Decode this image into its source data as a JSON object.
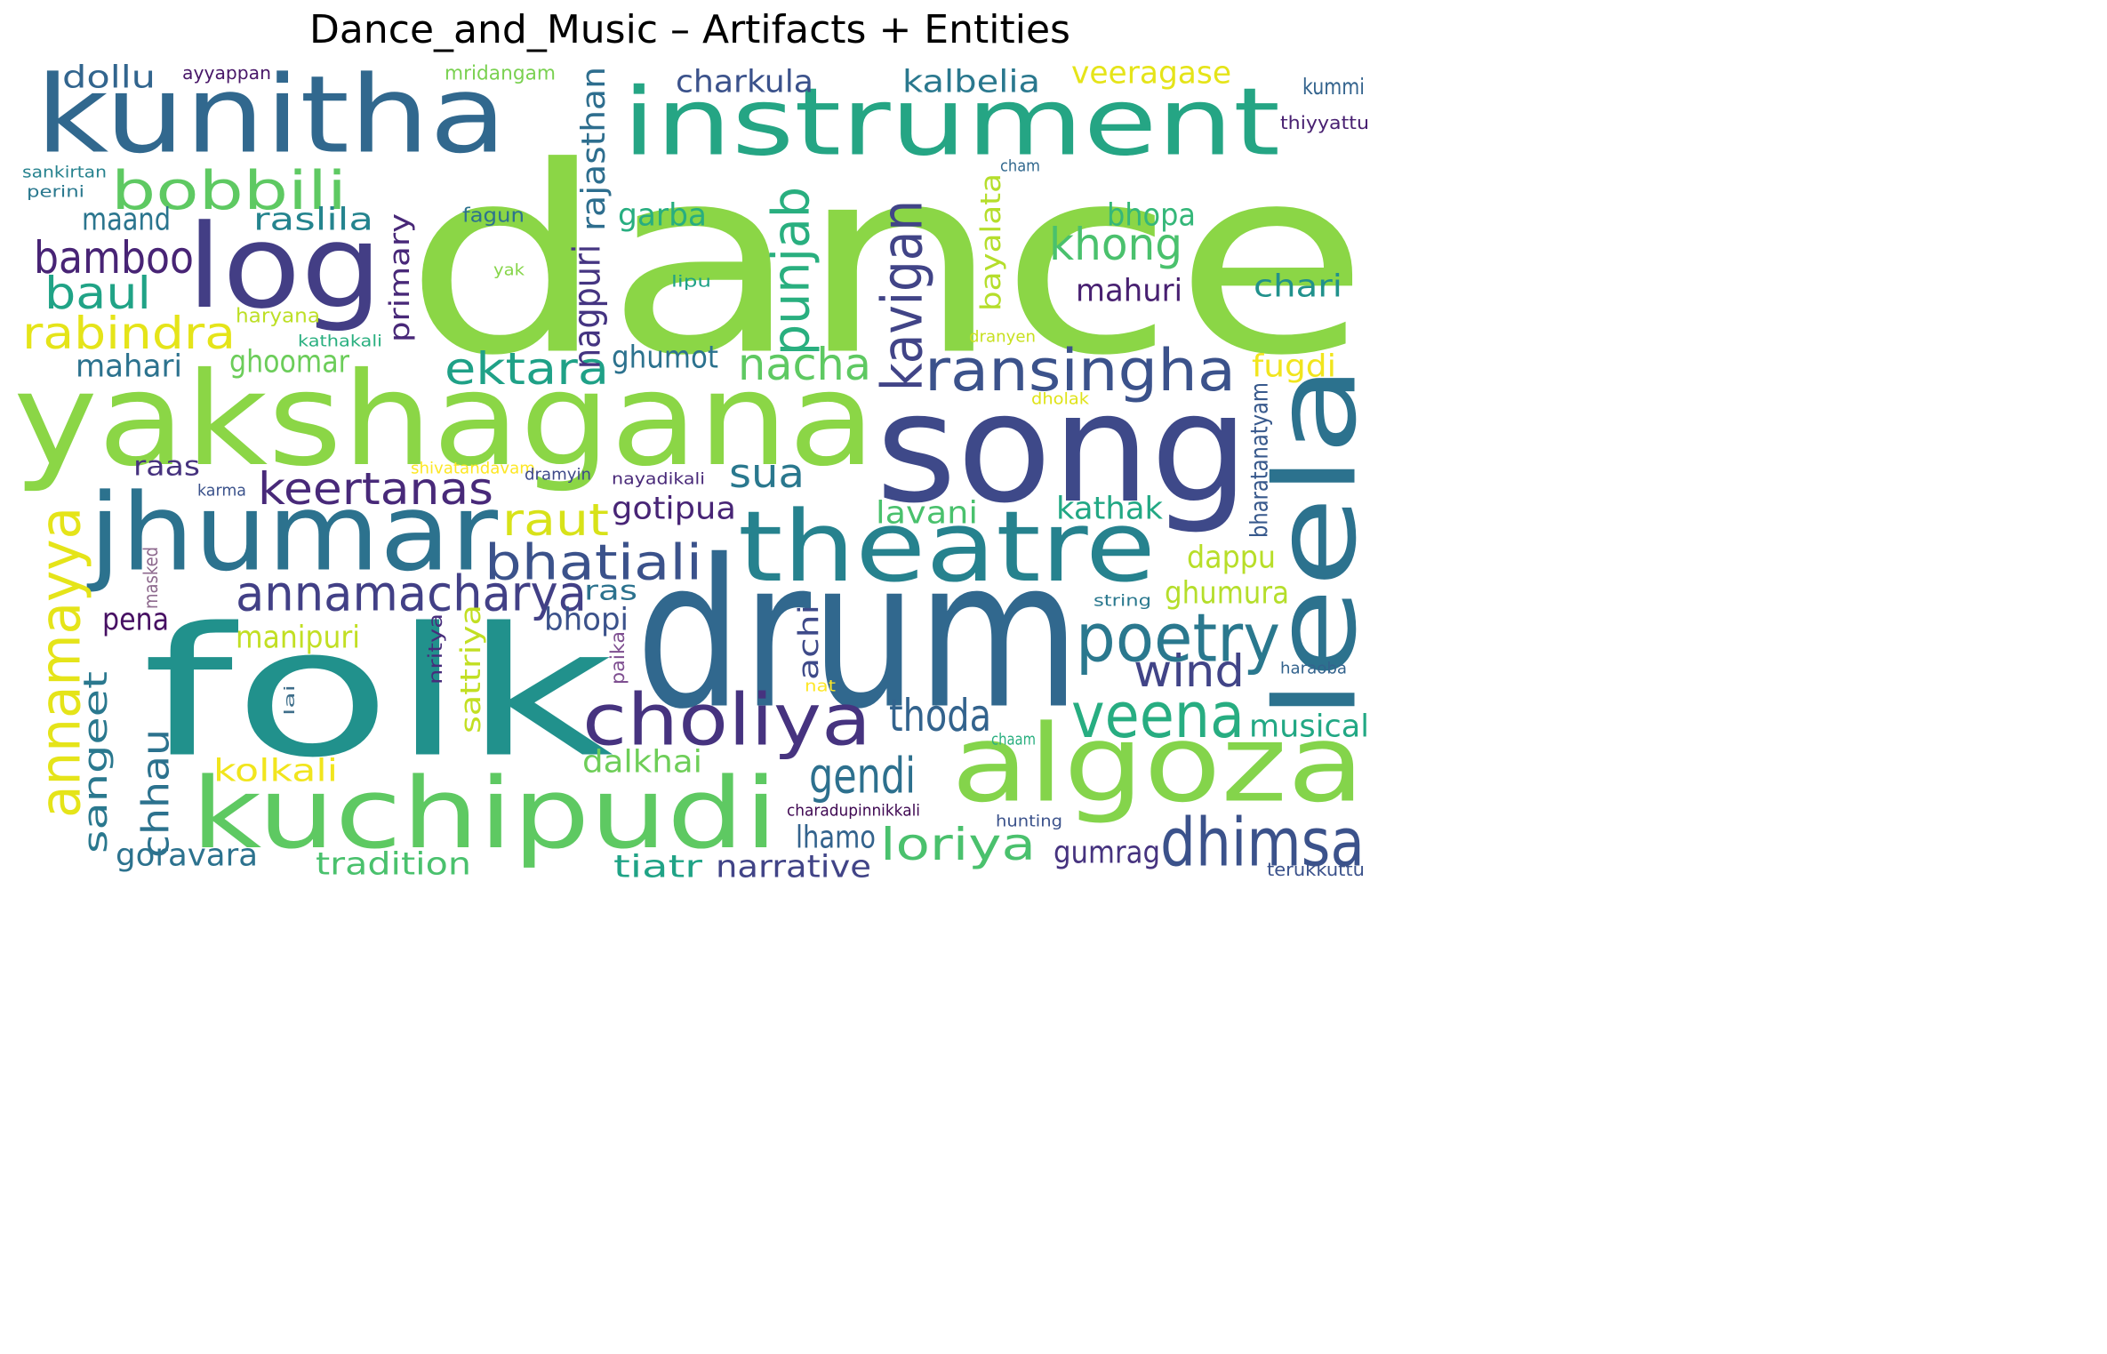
{
  "title": "Dance_and_Music – Artifacts + Entities",
  "words": [
    {
      "text": "dance",
      "color": "#8bd646"
    },
    {
      "text": "folk",
      "color": "#21918c"
    },
    {
      "text": "drum",
      "color": "#31688e"
    },
    {
      "text": "song",
      "color": "#3e4989"
    },
    {
      "text": "yakshagana",
      "color": "#8bd646"
    },
    {
      "text": "kunitha",
      "color": "#31688e"
    },
    {
      "text": "instrument",
      "color": "#25a584"
    },
    {
      "text": "jhumar",
      "color": "#2c728e"
    },
    {
      "text": "theatre",
      "color": "#26828e"
    },
    {
      "text": "kuchipudi",
      "color": "#5ec962"
    },
    {
      "text": "algoza",
      "color": "#84d44b"
    },
    {
      "text": "leela",
      "color": "#2c728e"
    },
    {
      "text": "log",
      "color": "#433e85"
    },
    {
      "text": "choliya",
      "color": "#46337f"
    },
    {
      "text": "annamayya",
      "color": "#e5e419"
    },
    {
      "text": "ransingha",
      "color": "#3b528b"
    },
    {
      "text": "veena",
      "color": "#27ad81"
    },
    {
      "text": "poetry",
      "color": "#2a788e"
    },
    {
      "text": "dhimsa",
      "color": "#3b528b"
    },
    {
      "text": "bobbili",
      "color": "#5ec962"
    },
    {
      "text": "annamacharya",
      "color": "#424086"
    },
    {
      "text": "kavigan",
      "color": "#414487"
    },
    {
      "text": "bhatiali",
      "color": "#3b528b"
    },
    {
      "text": "keertanas",
      "color": "#482979"
    },
    {
      "text": "rabindra",
      "color": "#e5e419"
    },
    {
      "text": "punjab",
      "color": "#29af7f"
    },
    {
      "text": "ektara",
      "color": "#1fa187"
    },
    {
      "text": "bamboo",
      "color": "#482475"
    },
    {
      "text": "khong",
      "color": "#4ac16d"
    },
    {
      "text": "sangeet",
      "color": "#2a788e"
    },
    {
      "text": "gendi",
      "color": "#2d708e"
    },
    {
      "text": "loriya",
      "color": "#4ac16d"
    },
    {
      "text": "nacha",
      "color": "#5ec962"
    },
    {
      "text": "baul",
      "color": "#20a386"
    },
    {
      "text": "thoda",
      "color": "#33638d"
    },
    {
      "text": "wind",
      "color": "#414487"
    },
    {
      "text": "chhau",
      "color": "#2c728e"
    },
    {
      "text": "raut",
      "color": "#d8e219"
    },
    {
      "text": "sua",
      "color": "#2a788e"
    },
    {
      "text": "rajasthan",
      "color": "#2e6e8e"
    },
    {
      "text": "bayalata",
      "color": "#b5de2b"
    },
    {
      "text": "primary",
      "color": "#482878"
    },
    {
      "text": "nagpuri",
      "color": "#453581"
    },
    {
      "text": "sattriya",
      "color": "#c2df23"
    },
    {
      "text": "achi",
      "color": "#3e4a89"
    },
    {
      "text": "bharatanatyam",
      "color": "#38598c"
    },
    {
      "text": "nritya",
      "color": "#472d7b"
    },
    {
      "text": "paika",
      "color": "#7e4e90"
    },
    {
      "text": "masked",
      "color": "#8e6a8e"
    },
    {
      "text": "lai",
      "color": "#3e6e8a"
    },
    {
      "text": "dollu",
      "color": "#32658e"
    },
    {
      "text": "maand",
      "color": "#2b758e"
    },
    {
      "text": "raslila",
      "color": "#25848e"
    },
    {
      "text": "garba",
      "color": "#28ae80"
    },
    {
      "text": "bhopa",
      "color": "#35b779"
    },
    {
      "text": "chari",
      "color": "#21918c"
    },
    {
      "text": "mahuri",
      "color": "#482071"
    },
    {
      "text": "charkula",
      "color": "#3b528b"
    },
    {
      "text": "kalbelia",
      "color": "#2a788e"
    },
    {
      "text": "veeragase",
      "color": "#e5e419"
    },
    {
      "text": "kummi",
      "color": "#33638d"
    },
    {
      "text": "thiyyattu",
      "color": "#482071"
    },
    {
      "text": "mridangam",
      "color": "#7ad151"
    },
    {
      "text": "ayyappan",
      "color": "#481668"
    },
    {
      "text": "sankirtan",
      "color": "#26828e"
    },
    {
      "text": "perini",
      "color": "#2a788e"
    },
    {
      "text": "cham",
      "color": "#31688e"
    },
    {
      "text": "fagun",
      "color": "#2c728e"
    },
    {
      "text": "yak",
      "color": "#86d549"
    },
    {
      "text": "lipu",
      "color": "#1fa187"
    },
    {
      "text": "haryana",
      "color": "#bddf26"
    },
    {
      "text": "kathakali",
      "color": "#29af7f"
    },
    {
      "text": "dranyen",
      "color": "#c8e020"
    },
    {
      "text": "dholak",
      "color": "#dfe318"
    },
    {
      "text": "mahari",
      "color": "#2c728e"
    },
    {
      "text": "ghoomar",
      "color": "#6ccd5a"
    },
    {
      "text": "ghumot",
      "color": "#2c728e"
    },
    {
      "text": "fugdi",
      "color": "#f1e51d"
    },
    {
      "text": "raas",
      "color": "#46327e"
    },
    {
      "text": "shivatandavam",
      "color": "#fde725"
    },
    {
      "text": "karma",
      "color": "#3b528b"
    },
    {
      "text": "dramyin",
      "color": "#3e4989"
    },
    {
      "text": "nayadikali",
      "color": "#482878"
    },
    {
      "text": "gotipua",
      "color": "#482576"
    },
    {
      "text": "lavani",
      "color": "#4ac16d"
    },
    {
      "text": "kathak",
      "color": "#22a884"
    },
    {
      "text": "dappu",
      "color": "#b8de29"
    },
    {
      "text": "ras",
      "color": "#2c728e"
    },
    {
      "text": "pena",
      "color": "#471063"
    },
    {
      "text": "bhopi",
      "color": "#3b528b"
    },
    {
      "text": "manipuri",
      "color": "#c2df23"
    },
    {
      "text": "ghumura",
      "color": "#b5de2b"
    },
    {
      "text": "string",
      "color": "#2a788e"
    },
    {
      "text": "haraoba",
      "color": "#33638d"
    },
    {
      "text": "nat",
      "color": "#fde725"
    },
    {
      "text": "musical",
      "color": "#22a884"
    },
    {
      "text": "chaam",
      "color": "#29af7f"
    },
    {
      "text": "dalkhai",
      "color": "#6ece58"
    },
    {
      "text": "kolkali",
      "color": "#f1e51d"
    },
    {
      "text": "charadupinnikkali",
      "color": "#3e0751"
    },
    {
      "text": "hunting",
      "color": "#3b528b"
    },
    {
      "text": "lhamo",
      "color": "#33638d"
    },
    {
      "text": "goravara",
      "color": "#2c728e"
    },
    {
      "text": "tradition",
      "color": "#4ac16d"
    },
    {
      "text": "tiatr",
      "color": "#20a386"
    },
    {
      "text": "narrative",
      "color": "#414487"
    },
    {
      "text": "gumrag",
      "color": "#46337f"
    },
    {
      "text": "terukkuttu",
      "color": "#3b528b"
    }
  ]
}
